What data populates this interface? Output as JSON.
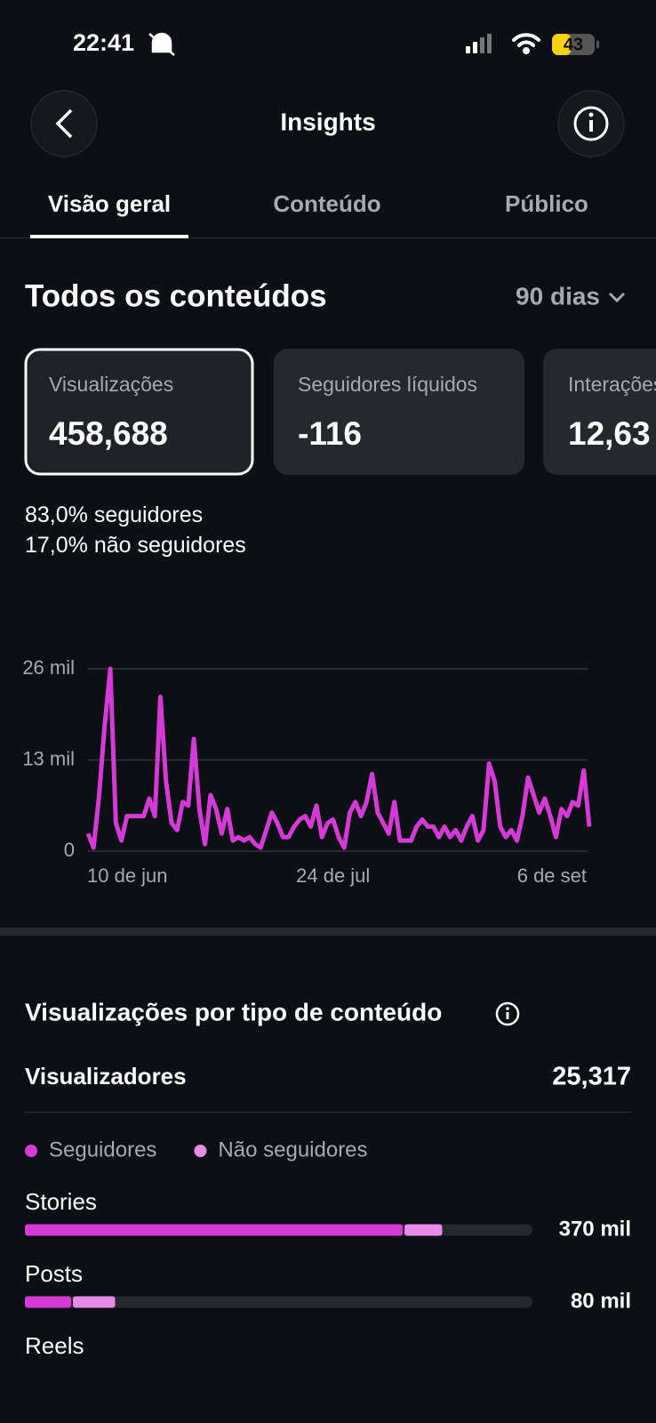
{
  "status_bar": {
    "time": "22:41",
    "battery": "43"
  },
  "header": {
    "title": "Insights"
  },
  "tabs": [
    "Visão geral",
    "Conteúdo",
    "Público"
  ],
  "section": {
    "title": "Todos os conteúdos",
    "period": "90 dias"
  },
  "cards": [
    {
      "label": "Visualizações",
      "value": "458,688"
    },
    {
      "label": "Seguidores líquidos",
      "value": "-116"
    },
    {
      "label": "Interações",
      "value": "12,63"
    }
  ],
  "breakdown": [
    {
      "value": "83,0%",
      "label": "seguidores"
    },
    {
      "value": "17,0%",
      "label": "não seguidores"
    }
  ],
  "chart_data": [
    {
      "type": "line",
      "x": [
        0,
        1,
        2,
        3,
        4,
        5,
        6,
        7,
        8,
        9,
        10,
        11,
        12,
        13,
        14,
        15,
        16,
        17,
        18,
        19,
        20,
        21,
        22,
        23,
        24,
        25,
        26,
        27,
        28,
        29,
        30,
        31,
        32,
        33,
        34,
        35,
        36,
        37,
        38,
        39,
        40,
        41,
        42,
        43,
        44,
        45,
        46,
        47,
        48,
        49,
        50,
        51,
        52,
        53,
        54,
        55,
        56,
        57,
        58,
        59,
        60,
        61,
        62,
        63,
        64,
        65,
        66,
        67,
        68,
        69,
        70,
        71,
        72,
        73,
        74,
        75,
        76,
        77,
        78,
        79,
        80,
        81,
        82,
        83,
        84,
        85,
        86,
        87,
        88,
        89,
        90
      ],
      "series": [
        {
          "color": "#d63ad6",
          "values": [
            2.5,
            0.5,
            8,
            18,
            26,
            4,
            1.5,
            5,
            5,
            5,
            5,
            7.5,
            5,
            22,
            10,
            4,
            3,
            7,
            6.5,
            16,
            6,
            1,
            8,
            6,
            2.5,
            6,
            1.5,
            2,
            1.5,
            2,
            1,
            0.5,
            3,
            5.5,
            4,
            2,
            2,
            3.5,
            4.5,
            5,
            3.5,
            6.5,
            2,
            4,
            4.5,
            2,
            0.5,
            5.5,
            7,
            5,
            7,
            11,
            5.5,
            4,
            2.5,
            7,
            1.5,
            1.5,
            1.5,
            3.5,
            4.5,
            3.5,
            3.5,
            2,
            3.5,
            2,
            3,
            1.5,
            3.5,
            5,
            1.5,
            3,
            12.5,
            10,
            3.5,
            2,
            3,
            1.5,
            5,
            10.5,
            8,
            5.5,
            7.5,
            5,
            2,
            6,
            5,
            7,
            6.5,
            11.5,
            3.5
          ]
        }
      ],
      "xlim": [
        0,
        90
      ],
      "xticks": [
        {
          "value": 0,
          "label": "10 de jun"
        },
        {
          "value": 44,
          "label": "24 de jul"
        },
        {
          "value": 88,
          "label": "6 de set"
        }
      ],
      "ylim": [
        0,
        26
      ],
      "yticks": [
        0,
        {
          "value": 13,
          "label": "13 mil"
        },
        {
          "value": 26,
          "label": "26 mil"
        }
      ],
      "grid": true
    },
    {
      "type": "stacked_bar_horizontal",
      "title": "Visualizações por tipo de conteúdo",
      "summary_label": "Visualizadores",
      "summary_value": "25,317",
      "categories": [
        "Stories",
        "Posts",
        "Reels"
      ],
      "series": [
        {
          "name": "Seguidores",
          "color": "#d63ad6",
          "values": [
            335,
            41,
            null
          ]
        },
        {
          "name": "Não seguidores",
          "color": "#e88be8",
          "values": [
            35,
            39,
            null
          ]
        }
      ],
      "totals": [
        370,
        80,
        null
      ],
      "total_labels": [
        "370 mil",
        "80 mil",
        null
      ],
      "xlim": [
        0,
        450
      ]
    }
  ]
}
